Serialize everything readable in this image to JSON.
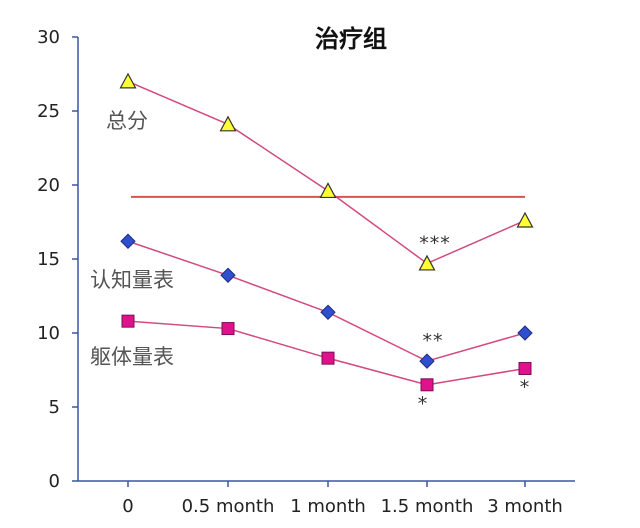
{
  "chart_data": {
    "type": "line",
    "title": "治疗组",
    "categories": [
      "0",
      "0.5 month",
      "1 month",
      "1.5 month",
      "3 month"
    ],
    "ylim": [
      0,
      30
    ],
    "yticks": [
      "0",
      "5",
      "10",
      "15",
      "20",
      "25",
      "30"
    ],
    "grid": false,
    "reference_line": {
      "value": 19.2,
      "color": "#d9534f"
    },
    "series": [
      {
        "name": "总分",
        "values": [
          27.0,
          24.1,
          19.6,
          14.7,
          17.6
        ],
        "marker": "triangle",
        "marker_color": "#ffff33",
        "line_color": "#d24a7f",
        "annotations": [
          "",
          "",
          "",
          "***",
          ""
        ]
      },
      {
        "name": "认知量表",
        "values": [
          16.2,
          13.9,
          11.4,
          8.1,
          10.0
        ],
        "marker": "diamond",
        "marker_color": "#2f4fd0",
        "line_color": "#d24a7f",
        "annotations": [
          "",
          "",
          "",
          "**",
          ""
        ]
      },
      {
        "name": "躯体量表",
        "values": [
          10.8,
          10.3,
          8.3,
          6.5,
          7.6
        ],
        "marker": "square",
        "marker_color": "#e0128b",
        "line_color": "#d24a7f",
        "annotations": [
          "",
          "",
          "",
          "*",
          "*"
        ]
      }
    ]
  }
}
